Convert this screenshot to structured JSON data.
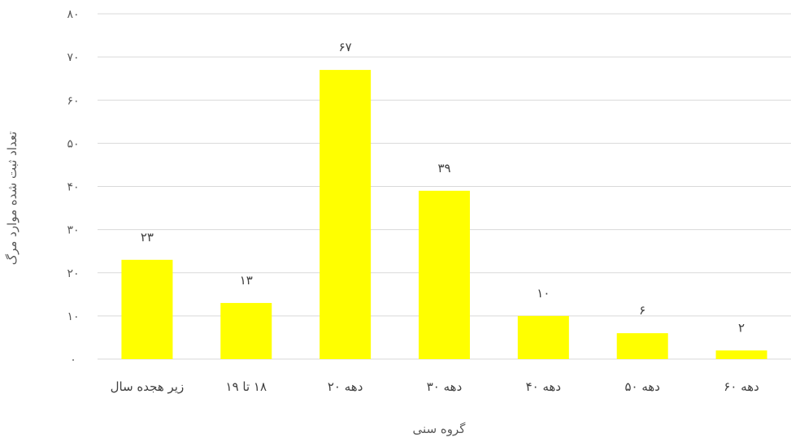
{
  "chart_data": {
    "type": "bar",
    "title": "",
    "xlabel": "گروه سنی",
    "ylabel": "تعداد ثبت شده موارد مرگ",
    "categories": [
      "زیر هجده سال",
      "۱۸ تا ۱۹",
      "دهه ۲۰",
      "دهه ۳۰",
      "دهه ۴۰",
      "دهه ۵۰",
      "دهه ۶۰"
    ],
    "values": [
      23,
      13,
      67,
      39,
      10,
      6,
      2
    ],
    "data_labels": [
      "۲۳",
      "۱۳",
      "۶۷",
      "۳۹",
      "۱۰",
      "۶",
      "۲"
    ],
    "ylim": [
      0,
      80
    ],
    "yticks": [
      0,
      10,
      20,
      30,
      40,
      50,
      60,
      70,
      80
    ],
    "ytick_labels": [
      "۰",
      "۱۰",
      "۲۰",
      "۳۰",
      "۴۰",
      "۵۰",
      "۶۰",
      "۷۰",
      "۸۰"
    ],
    "grid": true,
    "legend": "none",
    "bar_color": "#ffff00",
    "grid_color": "#d9d9d9"
  }
}
